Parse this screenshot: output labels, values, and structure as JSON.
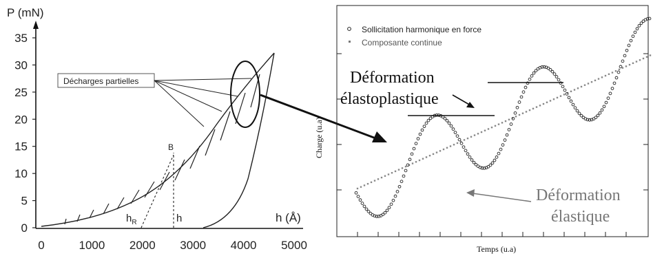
{
  "left_chart": {
    "ylabel": "P (mN)",
    "xlabel": "h (Å)",
    "callout": "Décharges partielles",
    "point_label": "B",
    "hr_label": "h",
    "hr_sub": "R",
    "h_label": "h"
  },
  "right_chart": {
    "xlabel": "Temps (u.a)",
    "ylabel": "Charge (u.a)",
    "legend": [
      "Sollicitation harmonique en force",
      "Composante continue"
    ],
    "annot_elastoplastic_1": "Déformation",
    "annot_elastoplastic_2": "élastoplastique",
    "annot_elastic_1": "Déformation",
    "annot_elastic_2": "élastique"
  },
  "chart_data": [
    {
      "type": "line",
      "xlim": [
        0,
        5000
      ],
      "ylim": [
        0,
        35
      ],
      "x_ticks": [
        0,
        1000,
        2000,
        3000,
        4000,
        5000
      ],
      "y_ticks": [
        0,
        5,
        10,
        15,
        20,
        25,
        30,
        35
      ],
      "grid": false,
      "series": [
        {
          "x": [
            150,
            600,
            1200,
            1800,
            2400,
            3000,
            3600,
            4100,
            4650
          ],
          "y": [
            0.5,
            1.5,
            4,
            7.5,
            11,
            15,
            20.5,
            25,
            32
          ]
        },
        {
          "x": [
            3400,
            3700,
            4000,
            4200,
            4400,
            4650
          ],
          "y": [
            0,
            2,
            6,
            11,
            20,
            32
          ]
        },
        {
          "x": [
            2100,
            2400,
            2750
          ],
          "y": [
            0,
            6,
            14
          ]
        },
        {
          "x": [
            2750,
            2750
          ],
          "y": [
            0,
            14
          ]
        }
      ]
    },
    {
      "type": "line",
      "xlabel": "Temps (u.a)",
      "ylabel": "Charge (u.a)",
      "grid": false,
      "legend_position": "top-left"
    }
  ]
}
